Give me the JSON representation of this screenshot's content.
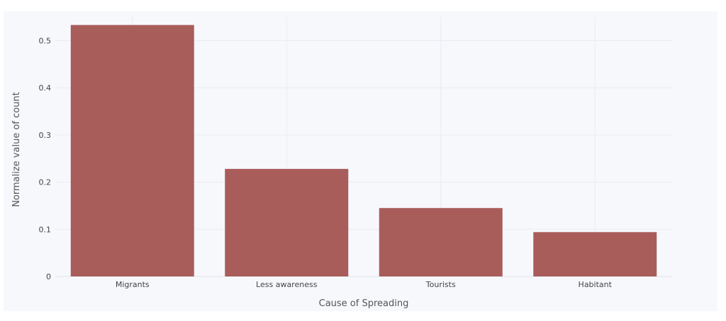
{
  "chart_data": {
    "type": "bar",
    "title": "",
    "xlabel": "Cause of Spreading",
    "ylabel": "Normalize value of count",
    "categories": [
      "Migrants",
      "Less awareness",
      "Tourists",
      "Habitant"
    ],
    "values": [
      0.533,
      0.228,
      0.145,
      0.094
    ],
    "ylim": [
      0,
      0.55
    ],
    "yticks": [
      0,
      0.1,
      0.2,
      0.3,
      0.4,
      0.5
    ],
    "ytick_labels": [
      "0",
      "0.1",
      "0.2",
      "0.3",
      "0.4",
      "0.5"
    ],
    "bar_color": "#a85d5b",
    "plot_background": "#f7f8fc",
    "grid": true,
    "legend": "none"
  }
}
